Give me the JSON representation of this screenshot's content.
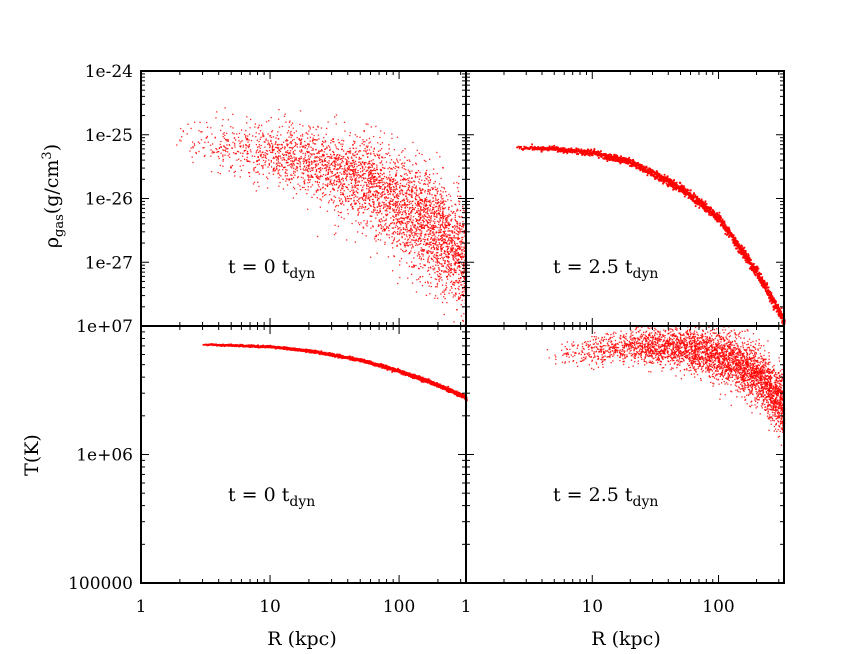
{
  "chart_data": {
    "type": "scatter",
    "color": "#ff0000",
    "layout": "2x2 panels, shared axes",
    "x_axis": {
      "label": "R (kpc)",
      "scale": "log",
      "range": [
        1,
        330
      ],
      "tick_values": [
        1,
        10,
        100
      ],
      "tick_labels": [
        "1",
        "10",
        "100"
      ]
    },
    "rows": [
      {
        "name": "gas density",
        "ylabel_main": "ρ",
        "ylabel_sub": "gas",
        "ylabel_unit_open": "(g/cm",
        "ylabel_unit_sup": "3",
        "ylabel_unit_close": ")",
        "scale": "log",
        "range": [
          1e-28,
          1e-24
        ],
        "tick_values": [
          1e-24,
          1e-25,
          1e-26,
          1e-27
        ],
        "tick_labels": [
          "1e-24",
          "1e-25",
          "1e-26",
          "1e-27"
        ]
      },
      {
        "name": "temperature",
        "ylabel": "T(K)",
        "scale": "log",
        "range": [
          100000.0,
          10000000.0
        ],
        "tick_values": [
          10000000.0,
          1000000.0,
          100000.0
        ],
        "tick_labels": [
          "1e+07",
          "1e+06",
          "100000"
        ]
      }
    ],
    "panels": [
      {
        "id": "density-t0",
        "row": 0,
        "col": 0,
        "annotation": {
          "main": "t = 0 t",
          "sub": "dyn"
        },
        "profile": "scattered",
        "x_range": [
          1.7,
          330
        ],
        "curve": [
          [
            1.7,
            9e-26
          ],
          [
            5,
            6.5e-26
          ],
          [
            20,
            4e-26
          ],
          [
            50,
            2.2e-26
          ],
          [
            100,
            8e-27
          ],
          [
            200,
            3e-27
          ],
          [
            330,
            1e-27
          ]
        ],
        "spread_dex": 0.35
      },
      {
        "id": "density-t2.5",
        "row": 0,
        "col": 1,
        "annotation": {
          "main": "t = 2.5 t",
          "sub": "dyn"
        },
        "profile": "thin",
        "x_range": [
          2.5,
          330
        ],
        "curve": [
          [
            2.5,
            6.4e-26
          ],
          [
            5,
            6.2e-26
          ],
          [
            10,
            5.3e-26
          ],
          [
            20,
            3.8e-26
          ],
          [
            50,
            1.5e-26
          ],
          [
            100,
            5e-27
          ],
          [
            200,
            7e-28
          ],
          [
            330,
            1.2e-28
          ]
        ],
        "spread_dex": 0.03
      },
      {
        "id": "temperature-t0",
        "row": 1,
        "col": 0,
        "annotation": {
          "main": "t = 0 t",
          "sub": "dyn"
        },
        "profile": "thin",
        "x_range": [
          3,
          330
        ],
        "curve": [
          [
            3,
            7300000.0
          ],
          [
            10,
            7000000.0
          ],
          [
            20,
            6500000.0
          ],
          [
            50,
            5500000.0
          ],
          [
            100,
            4500000.0
          ],
          [
            200,
            3500000.0
          ],
          [
            330,
            2800000.0
          ]
        ],
        "spread_dex": 0.005
      },
      {
        "id": "temperature-t2.5",
        "row": 1,
        "col": 1,
        "annotation": {
          "main": "t = 2.5 t",
          "sub": "dyn"
        },
        "profile": "scattered",
        "x_range": [
          4,
          330
        ],
        "curve": [
          [
            4,
            5800000.0
          ],
          [
            10,
            6500000.0
          ],
          [
            20,
            7100000.0
          ],
          [
            50,
            6900000.0
          ],
          [
            100,
            6000000.0
          ],
          [
            200,
            4200000.0
          ],
          [
            330,
            2400000.0
          ]
        ],
        "spread_dex": 0.09
      }
    ]
  }
}
